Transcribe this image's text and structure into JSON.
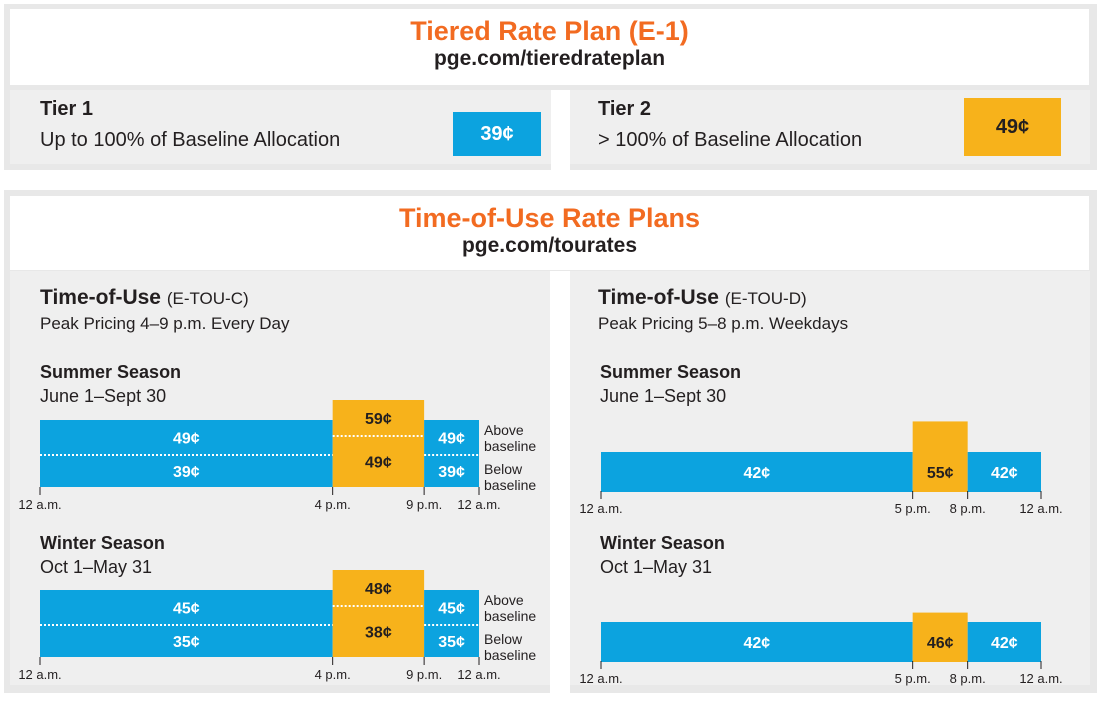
{
  "colors": {
    "blue": "#0ca3df",
    "orange": "#f7b21b",
    "accent": "#f26b21"
  },
  "tiered": {
    "title": "Tiered Rate Plan (E-1)",
    "url": "pge.com/tieredrateplan",
    "tier1": {
      "name": "Tier 1",
      "desc": "Up to 100% of Baseline Allocation",
      "price": "39¢"
    },
    "tier2": {
      "name": "Tier 2",
      "desc": "> 100% of Baseline Allocation",
      "price": "49¢"
    }
  },
  "tou": {
    "title": "Time-of-Use Rate Plans",
    "url": "pge.com/tourates",
    "plan_c": {
      "name": "Time-of-Use",
      "code": "(E-TOU-C)",
      "peak": "Peak Pricing 4–9 p.m. Every Day"
    },
    "plan_d": {
      "name": "Time-of-Use",
      "code": "(E-TOU-D)",
      "peak": "Peak Pricing 5–8 p.m. Weekdays"
    },
    "summer": {
      "label": "Summer Season",
      "dates": "June 1–Sept 30"
    },
    "winter": {
      "label": "Winter Season",
      "dates": "Oct 1–May 31"
    }
  },
  "chart_data": [
    {
      "type": "bar",
      "id": "touc-summer",
      "x_ticks": [
        "12 a.m.",
        "4 p.m.",
        "9 p.m.",
        "12 a.m."
      ],
      "x_tick_hours": [
        0,
        16,
        21,
        24
      ],
      "band_labels": [
        "Above baseline",
        "Below baseline"
      ],
      "segments": [
        {
          "start": 0,
          "end": 16,
          "period": "off-peak",
          "above": "49¢",
          "below": "39¢"
        },
        {
          "start": 16,
          "end": 21,
          "period": "peak",
          "above": "59¢",
          "below": "49¢"
        },
        {
          "start": 21,
          "end": 24,
          "period": "off-peak",
          "above": "49¢",
          "below": "39¢"
        }
      ]
    },
    {
      "type": "bar",
      "id": "touc-winter",
      "x_ticks": [
        "12 a.m.",
        "4 p.m.",
        "9 p.m.",
        "12 a.m."
      ],
      "x_tick_hours": [
        0,
        16,
        21,
        24
      ],
      "band_labels": [
        "Above baseline",
        "Below baseline"
      ],
      "segments": [
        {
          "start": 0,
          "end": 16,
          "period": "off-peak",
          "above": "45¢",
          "below": "35¢"
        },
        {
          "start": 16,
          "end": 21,
          "period": "peak",
          "above": "48¢",
          "below": "38¢"
        },
        {
          "start": 21,
          "end": 24,
          "period": "off-peak",
          "above": "45¢",
          "below": "35¢"
        }
      ]
    },
    {
      "type": "bar",
      "id": "toud-summer",
      "x_ticks": [
        "12 a.m.",
        "5 p.m.",
        "8 p.m.",
        "12 a.m."
      ],
      "x_tick_hours": [
        0,
        17,
        20,
        24
      ],
      "segments": [
        {
          "start": 0,
          "end": 17,
          "period": "off-peak",
          "value": 42,
          "label": "42¢"
        },
        {
          "start": 17,
          "end": 20,
          "period": "peak",
          "value": 55,
          "label": "55¢"
        },
        {
          "start": 20,
          "end": 24,
          "period": "off-peak",
          "value": 42,
          "label": "42¢"
        }
      ]
    },
    {
      "type": "bar",
      "id": "toud-winter",
      "x_ticks": [
        "12 a.m.",
        "5 p.m.",
        "8 p.m.",
        "12 a.m."
      ],
      "x_tick_hours": [
        0,
        17,
        20,
        24
      ],
      "segments": [
        {
          "start": 0,
          "end": 17,
          "period": "off-peak",
          "value": 42,
          "label": "42¢"
        },
        {
          "start": 17,
          "end": 20,
          "period": "peak",
          "value": 46,
          "label": "46¢"
        },
        {
          "start": 20,
          "end": 24,
          "period": "off-peak",
          "value": 42,
          "label": "42¢"
        }
      ]
    }
  ]
}
